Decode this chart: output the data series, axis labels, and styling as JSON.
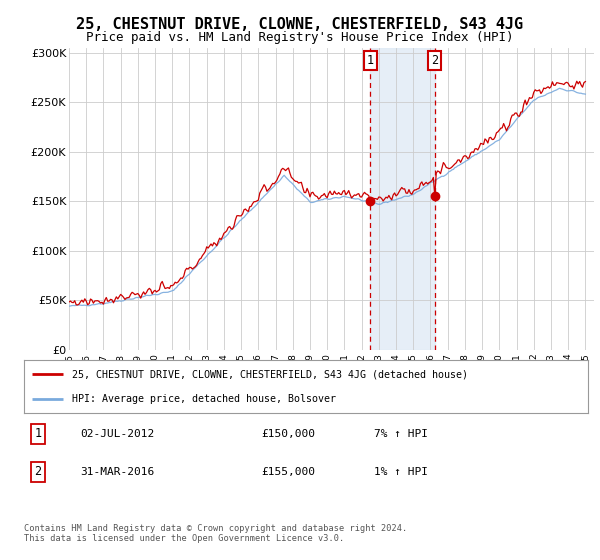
{
  "title": "25, CHESTNUT DRIVE, CLOWNE, CHESTERFIELD, S43 4JG",
  "subtitle": "Price paid vs. HM Land Registry's House Price Index (HPI)",
  "title_fontsize": 11,
  "subtitle_fontsize": 9,
  "ylabel_ticks": [
    "£0",
    "£50K",
    "£100K",
    "£150K",
    "£200K",
    "£250K",
    "£300K"
  ],
  "ytick_values": [
    0,
    50000,
    100000,
    150000,
    200000,
    250000,
    300000
  ],
  "ylim": [
    0,
    305000
  ],
  "xlim_start": 1995.0,
  "xlim_end": 2025.5,
  "marker1_x": 2012.5,
  "marker2_x": 2016.25,
  "marker1_price": 150000,
  "marker2_price": 155000,
  "shade_color": "#dce8f5",
  "shade_alpha": 0.7,
  "line_red_color": "#cc0000",
  "line_blue_color": "#7aaadd",
  "legend_line1": "25, CHESTNUT DRIVE, CLOWNE, CHESTERFIELD, S43 4JG (detached house)",
  "legend_line2": "HPI: Average price, detached house, Bolsover",
  "table_row1": [
    "1",
    "02-JUL-2012",
    "£150,000",
    "7% ↑ HPI"
  ],
  "table_row2": [
    "2",
    "31-MAR-2016",
    "£155,000",
    "1% ↑ HPI"
  ],
  "footnote": "Contains HM Land Registry data © Crown copyright and database right 2024.\nThis data is licensed under the Open Government Licence v3.0.",
  "background_color": "#ffffff"
}
